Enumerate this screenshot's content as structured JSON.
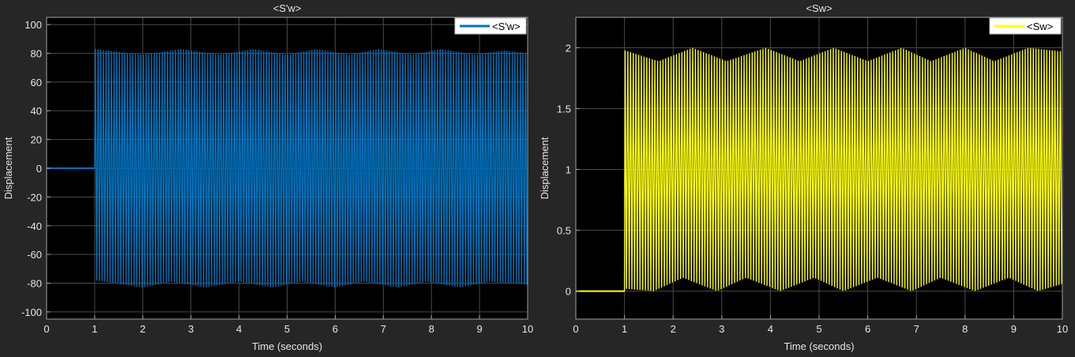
{
  "chart_data": [
    {
      "type": "line",
      "title": "<S'w>",
      "xlabel": "Time (seconds)",
      "ylabel": "Displacement",
      "xlim": [
        0,
        10
      ],
      "ylim": [
        -105,
        105
      ],
      "xticks": [
        0,
        1,
        2,
        3,
        4,
        5,
        6,
        7,
        8,
        9,
        10
      ],
      "yticks": [
        -100,
        -80,
        -60,
        -40,
        -20,
        0,
        20,
        40,
        60,
        80,
        100
      ],
      "grid": true,
      "legend_position": "top-right",
      "series": [
        {
          "name": "<S'w>",
          "color": "#0072BD",
          "description": "zero until t=1, then oscillation between about -82 and +83",
          "x": [
            0,
            1,
            1,
            10
          ],
          "y": [
            0,
            0,
            83,
            80
          ],
          "envelope_upper": [
            [
              1,
              83
            ],
            [
              2,
              79
            ],
            [
              2.8,
              83
            ],
            [
              3.6,
              79
            ],
            [
              4.3,
              83
            ],
            [
              5,
              79
            ],
            [
              5.6,
              83
            ],
            [
              6.3,
              79
            ],
            [
              6.9,
              83
            ],
            [
              7.6,
              79
            ],
            [
              8.2,
              83
            ],
            [
              8.9,
              79
            ],
            [
              9.5,
              82
            ],
            [
              10,
              80
            ]
          ],
          "envelope_lower": [
            [
              1,
              -78
            ],
            [
              2,
              -83
            ],
            [
              2.6,
              -79
            ],
            [
              3.3,
              -83
            ],
            [
              4,
              -79
            ],
            [
              4.7,
              -83
            ],
            [
              5.3,
              -79
            ],
            [
              6,
              -83
            ],
            [
              6.6,
              -79
            ],
            [
              7.3,
              -83
            ],
            [
              7.9,
              -79
            ],
            [
              8.6,
              -83
            ],
            [
              9.2,
              -79
            ],
            [
              10,
              -81
            ]
          ],
          "cycles_per_second": 18
        }
      ]
    },
    {
      "type": "line",
      "title": "<Sw>",
      "xlabel": "Time (seconds)",
      "ylabel": "Displacement",
      "xlim": [
        0,
        10
      ],
      "ylim": [
        -0.23,
        2.25
      ],
      "xticks": [
        0,
        1,
        2,
        3,
        4,
        5,
        6,
        7,
        8,
        9,
        10
      ],
      "yticks": [
        0,
        0.5,
        1,
        1.5,
        2
      ],
      "grid": true,
      "legend_position": "top-right",
      "series": [
        {
          "name": "<Sw>",
          "color": "#FFFF11",
          "description": "zero until t=1, then oscillation between about 0 and 2",
          "x": [
            0,
            1,
            1,
            10
          ],
          "y": [
            0,
            0,
            1.98,
            1.97
          ],
          "envelope_upper": [
            [
              1,
              1.98
            ],
            [
              1.7,
              1.89
            ],
            [
              2.4,
              2.0
            ],
            [
              3.1,
              1.89
            ],
            [
              3.9,
              2.0
            ],
            [
              4.6,
              1.89
            ],
            [
              5.3,
              2.0
            ],
            [
              6.0,
              1.89
            ],
            [
              6.7,
              2.0
            ],
            [
              7.3,
              1.89
            ],
            [
              8.0,
              2.0
            ],
            [
              8.6,
              1.89
            ],
            [
              9.3,
              2.0
            ],
            [
              10,
              1.97
            ]
          ],
          "envelope_lower": [
            [
              1,
              0.02
            ],
            [
              1.6,
              0.0
            ],
            [
              2.2,
              0.11
            ],
            [
              2.9,
              0.0
            ],
            [
              3.5,
              0.11
            ],
            [
              4.2,
              0.0
            ],
            [
              4.9,
              0.11
            ],
            [
              5.5,
              0.0
            ],
            [
              6.2,
              0.11
            ],
            [
              6.9,
              0.0
            ],
            [
              7.5,
              0.11
            ],
            [
              8.2,
              0.0
            ],
            [
              8.9,
              0.11
            ],
            [
              9.5,
              0.0
            ],
            [
              10,
              0.06
            ]
          ],
          "cycles_per_second": 18
        }
      ]
    }
  ],
  "colors": {
    "figure_background": "#262626",
    "axes_background": "#000000",
    "grid": "#4a4a4a",
    "tick_text": "#e6e6e6",
    "axes_edge": "#a0a0a0"
  }
}
